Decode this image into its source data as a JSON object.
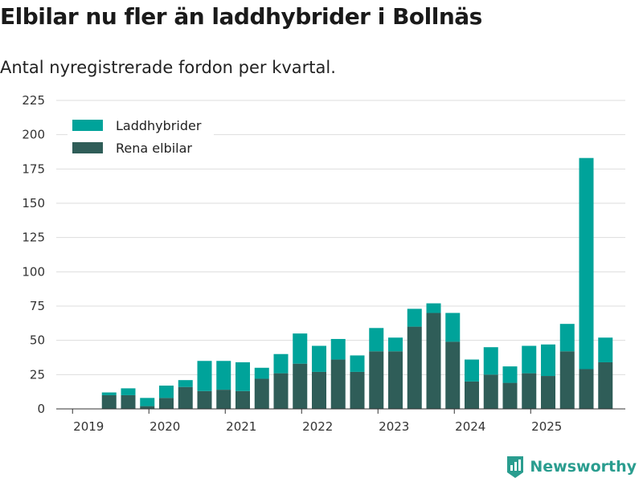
{
  "title": "Elbilar nu fler än laddhybrider i Bollnäs",
  "subtitle": "Antal nyregistrerade fordon per kvartal.",
  "brand": "Newsworthy",
  "colors": {
    "phev": "#00a39a",
    "ev": "#2f5d58",
    "grid": "#dddddd",
    "axis": "#333333"
  },
  "chart_data": {
    "type": "bar",
    "stacked": true,
    "categories": [
      "2019 Q1",
      "2019 Q2",
      "2019 Q3",
      "2019 Q4",
      "2020 Q1",
      "2020 Q2",
      "2020 Q3",
      "2020 Q4",
      "2021 Q1",
      "2021 Q2",
      "2021 Q3",
      "2021 Q4",
      "2022 Q1",
      "2022 Q2",
      "2022 Q3",
      "2022 Q4",
      "2023 Q1",
      "2023 Q2",
      "2023 Q3",
      "2023 Q4",
      "2024 Q1",
      "2024 Q2",
      "2024 Q3",
      "2024 Q4",
      "2025 Q1",
      "2025 Q2",
      "2025 Q3",
      "2025 Q4"
    ],
    "x_tick_labels": [
      "2019",
      "2020",
      "2021",
      "2022",
      "2023",
      "2024",
      "2025"
    ],
    "series": [
      {
        "name": "Rena elbilar",
        "color_key": "ev",
        "values": [
          0,
          10,
          10,
          2,
          8,
          16,
          13,
          14,
          13,
          22,
          26,
          33,
          27,
          36,
          27,
          42,
          42,
          60,
          70,
          49,
          20,
          25,
          19,
          26,
          24,
          42,
          29,
          34
        ]
      },
      {
        "name": "Laddhybrider",
        "color_key": "phev",
        "values": [
          0,
          2,
          5,
          6,
          9,
          5,
          22,
          21,
          21,
          8,
          14,
          22,
          19,
          15,
          12,
          17,
          10,
          13,
          7,
          21,
          16,
          20,
          12,
          20,
          23,
          20,
          154,
          18
        ]
      }
    ],
    "ylim": [
      0,
      225
    ],
    "yticks": [
      0,
      25,
      50,
      75,
      100,
      125,
      150,
      175,
      200,
      225
    ],
    "grid": true,
    "legend_position": "top-left"
  }
}
